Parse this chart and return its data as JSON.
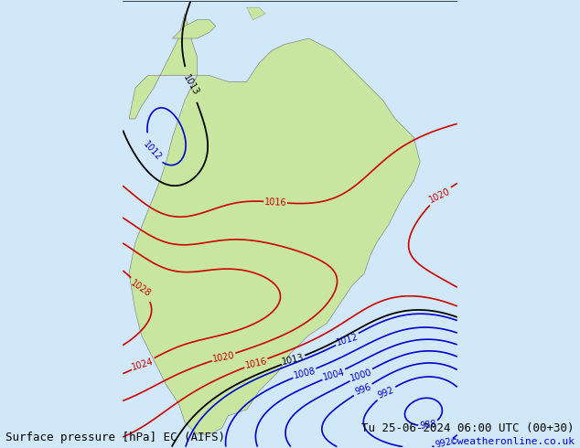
{
  "title_left": "Surface pressure [hPa] EC (AIFS)",
  "title_right": "Tu 25-06-2024 06:00 UTC (00+30)",
  "copyright": "©weatheronline.co.uk",
  "bg_color": "#d0e8f8",
  "land_color": "#c8e6a0",
  "border_color": "#888888",
  "isobar_red_color": "#cc0000",
  "isobar_blue_color": "#0000cc",
  "isobar_black_color": "#000000",
  "label_fontsize": 9,
  "footer_fontsize": 9,
  "copyright_color": "#0000cc"
}
